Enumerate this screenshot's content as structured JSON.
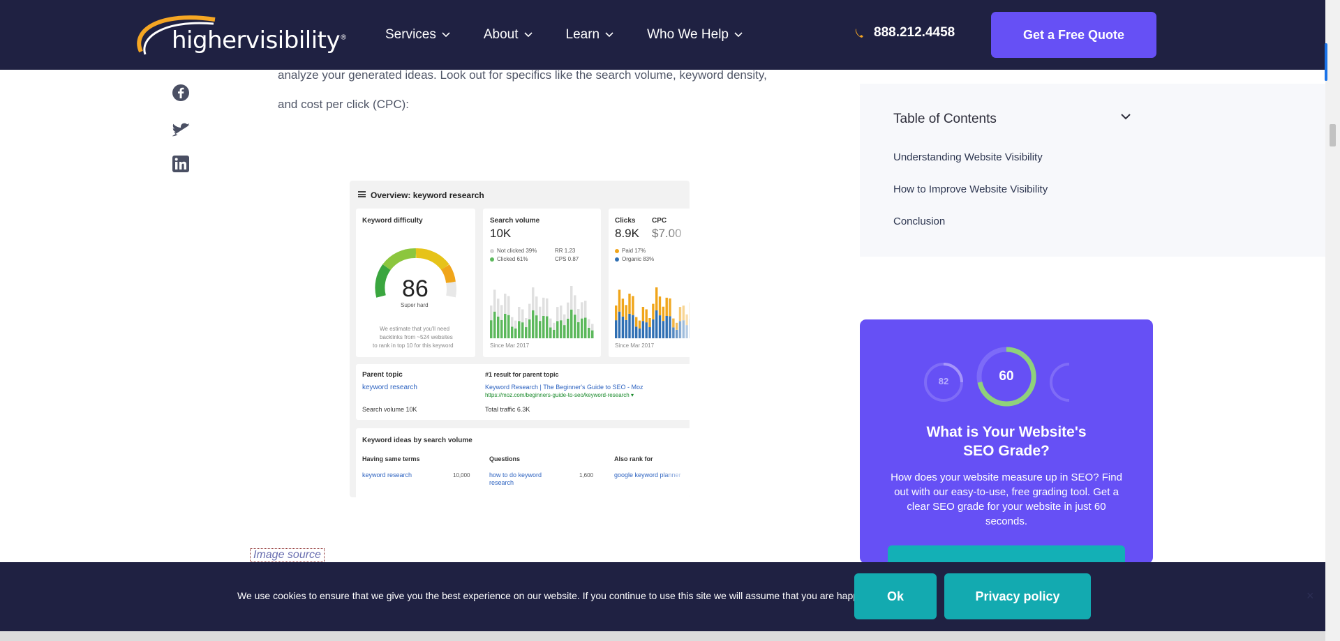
{
  "header": {
    "logo_text": "highervisibility",
    "logo_mark": "®",
    "nav": [
      "Services",
      "About",
      "Learn",
      "Who We Help"
    ],
    "phone": "888.212.4458",
    "cta": "Get a Free Quote"
  },
  "article": {
    "paragraph_line1": "analyze your generated ideas. Look out for specifics like the search volume, keyword density,",
    "paragraph_line2": "and cost per click (CPC):",
    "image_source": "Image source"
  },
  "screenshot": {
    "title": "Overview: keyword research",
    "kd_label": "Keyword difficulty",
    "kd_value": "86",
    "kd_rating": "Super hard",
    "kd_note": [
      "We estimate that you'll need",
      "backlinks from ~524 websites",
      "to rank in top 10 for this keyword"
    ],
    "sv_label": "Search volume",
    "sv_value": "10K",
    "sv_not_clicked": "Not clicked 39%",
    "sv_clicked": "Clicked 61%",
    "sv_rr": "RR 1.23",
    "sv_cps": "CPS 0.87",
    "sv_since": "Since Mar 2017",
    "clicks_label": "Clicks",
    "clicks_value": "8.9K",
    "cpc_label": "CPC",
    "cpc_value": "$7.00",
    "paid": "Paid 17%",
    "organic": "Organic 83%",
    "clicks_since": "Since Mar 2017",
    "parent_topic_label": "Parent topic",
    "parent_topic": "keyword research",
    "parent_sv": "Search volume 10K",
    "first_result_label": "#1 result for parent topic",
    "first_result_title": "Keyword Research | The Beginner's Guide to SEO - Moz",
    "first_result_url": "https://moz.com/beginners-guide-to-seo/keyword-research ▾",
    "total_traffic": "Total traffic 6.3K",
    "ideas_label": "Keyword ideas by search volume",
    "col1": "Having same terms",
    "col2": "Questions",
    "col3": "Also rank for",
    "row1_c1": "keyword research",
    "row1_c1_val": "10,000",
    "row1_c2": "how to do keyword",
    "row1_c2b": "research",
    "row1_c2_val": "1,600",
    "row1_c3": "google keyword planner"
  },
  "toc": {
    "title": "Table of Contents",
    "items": [
      "Understanding Website Visibility",
      "How to Improve Website Visibility",
      "Conclusion"
    ]
  },
  "seo_card": {
    "score_left": "82",
    "score_main": "60",
    "title": "What is Your Website's SEO Grade?",
    "description": "How does your website measure up in SEO? Find out with our easy-to-use, free grading tool. Get a clear SEO grade for your website in just 60 seconds."
  },
  "cookie": {
    "text": "We use cookies to ensure that we give you the best experience on our website. If you continue to use this site we will assume that you are happy with it.",
    "ok": "Ok",
    "privacy": "Privacy policy",
    "close": "×"
  },
  "colors": {
    "navy": "#1f2142",
    "purple": "#6650f5",
    "teal": "#13aab0",
    "phone_icon": "#f5a623"
  },
  "icons": [
    "facebook-icon",
    "twitter-icon",
    "linkedin-icon",
    "phone-icon",
    "chevron-down-icon",
    "close-icon"
  ]
}
